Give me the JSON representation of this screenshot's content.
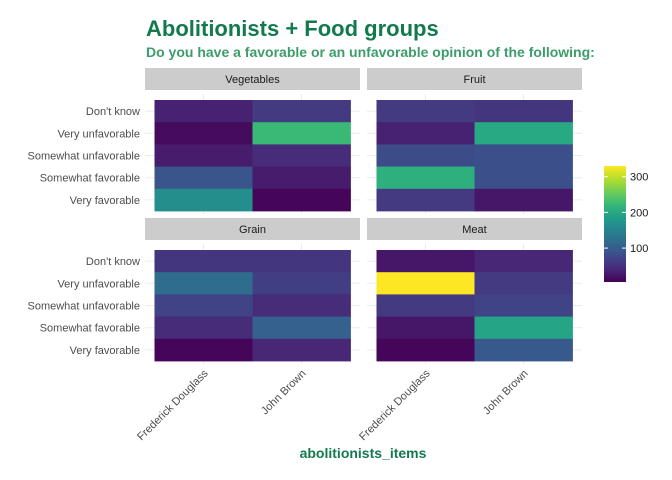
{
  "title": "Abolitionists + Food groups",
  "subtitle": "Do you have a favorable or an unfavorable opinion of the following:",
  "colors": {
    "title": "#137a4f",
    "subtitle": "#3c9d6b",
    "strip": "#cccccc",
    "grid": "#ebebeb"
  },
  "chart_data": {
    "type": "heatmap",
    "xlabel": "abolitionists_items",
    "ylabel": "",
    "x_categories": [
      "Frederick Douglass",
      "John Brown"
    ],
    "y_categories": [
      "Don't know",
      "Very unfavorable",
      "Somewhat unfavorable",
      "Somewhat favorable",
      "Very favorable"
    ],
    "color_scale": "viridis",
    "color_range": [
      5,
      330
    ],
    "legend": {
      "title": "",
      "ticks": [
        100,
        200,
        300
      ],
      "position": "right"
    },
    "panels": [
      {
        "name": "Vegetables",
        "values": {
          "Frederick Douglass": {
            "Don't know": 35,
            "Very unfavorable": 15,
            "Somewhat unfavorable": 30,
            "Somewhat favorable": 90,
            "Very favorable": 165
          },
          "John Brown": {
            "Don't know": 60,
            "Very unfavorable": 225,
            "Somewhat unfavorable": 45,
            "Somewhat favorable": 30,
            "Very favorable": 10
          }
        }
      },
      {
        "name": "Fruit",
        "values": {
          "Frederick Douglass": {
            "Don't know": 60,
            "Very unfavorable": 35,
            "Somewhat unfavorable": 80,
            "Somewhat favorable": 210,
            "Very favorable": 60
          },
          "John Brown": {
            "Don't know": 55,
            "Very unfavorable": 200,
            "Somewhat unfavorable": 85,
            "Somewhat favorable": 85,
            "Very favorable": 25
          }
        }
      },
      {
        "name": "Grain",
        "values": {
          "Frederick Douglass": {
            "Don't know": 55,
            "Very unfavorable": 120,
            "Somewhat unfavorable": 70,
            "Somewhat favorable": 45,
            "Very favorable": 10
          },
          "John Brown": {
            "Don't know": 55,
            "Very unfavorable": 65,
            "Somewhat unfavorable": 45,
            "Somewhat favorable": 105,
            "Very favorable": 40
          }
        }
      },
      {
        "name": "Meat",
        "values": {
          "Frederick Douglass": {
            "Don't know": 25,
            "Very unfavorable": 330,
            "Somewhat unfavorable": 60,
            "Somewhat favorable": 25,
            "Very favorable": 10
          },
          "John Brown": {
            "Don't know": 40,
            "Very unfavorable": 60,
            "Somewhat unfavorable": 70,
            "Somewhat favorable": 195,
            "Very favorable": 95
          }
        }
      }
    ]
  }
}
